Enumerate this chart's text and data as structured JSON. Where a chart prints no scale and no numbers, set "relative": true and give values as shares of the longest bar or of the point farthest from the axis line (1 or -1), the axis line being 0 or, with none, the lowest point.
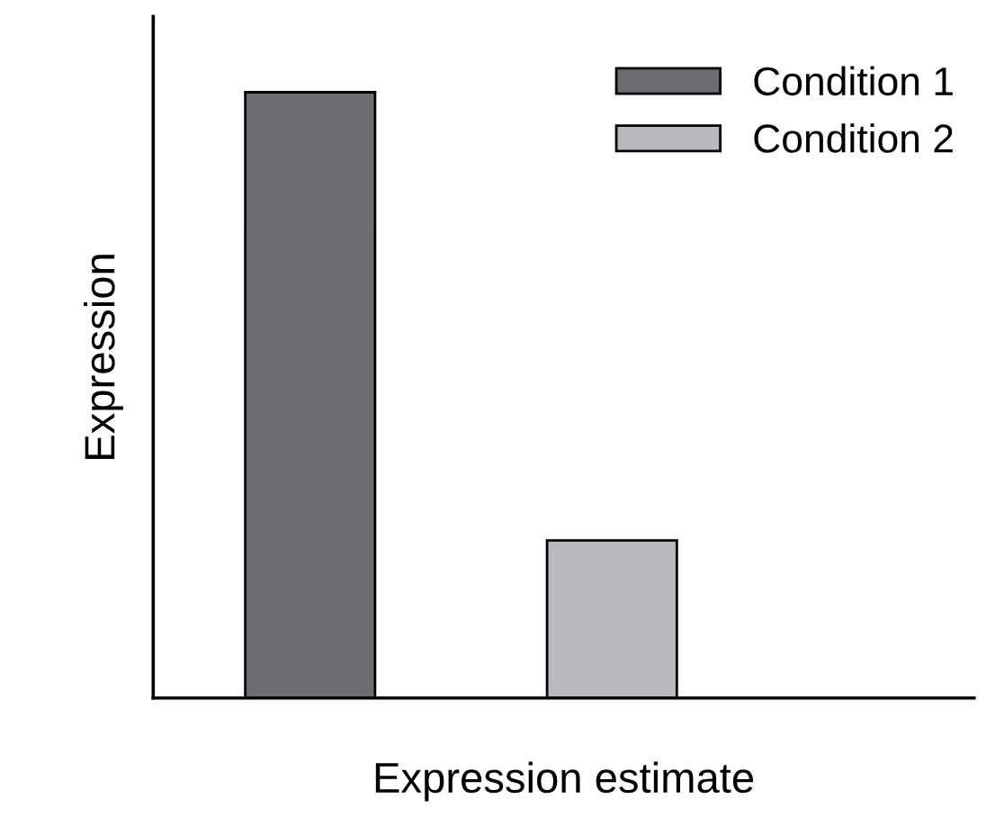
{
  "chart_data": {
    "type": "bar",
    "xlabel": "Expression estimate",
    "ylabel": "Expression",
    "relative": true,
    "categories": [
      null,
      null
    ],
    "stacked": true,
    "series": [
      {
        "name": "Condition 1",
        "color": "#6d6d6f",
        "values": [
          1,
          0
        ]
      },
      {
        "name": "Condition 2",
        "color": "#b9b9bb",
        "values": [
          0,
          0.26
        ]
      }
    ],
    "legend": "top right",
    "grid": false
  }
}
